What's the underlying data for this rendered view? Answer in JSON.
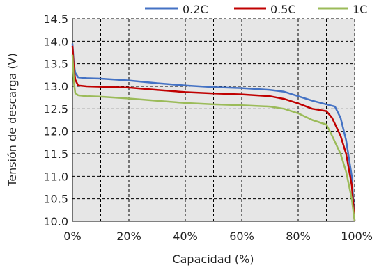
{
  "chart_data": {
    "type": "line",
    "title": "",
    "xlabel": "Capacidad (%)",
    "ylabel": "Tensión de descarga (V)",
    "xlim": [
      0,
      100
    ],
    "ylim": [
      10.0,
      14.5
    ],
    "x_ticks": [
      "0%",
      "20%",
      "40%",
      "60%",
      "80%",
      "100%"
    ],
    "y_ticks": [
      "10.0",
      "10.5",
      "11.0",
      "11.5",
      "12.0",
      "12.5",
      "13.0",
      "13.5",
      "14.0",
      "14.5"
    ],
    "grid": true,
    "plot_background": "#e6e6e6",
    "legend_position": "top",
    "series": [
      {
        "name": "0.2C",
        "color": "#4472c4",
        "points": [
          [
            0,
            13.95
          ],
          [
            0.5,
            13.5
          ],
          [
            1,
            13.3
          ],
          [
            2,
            13.2
          ],
          [
            5,
            13.18
          ],
          [
            10,
            13.17
          ],
          [
            20,
            13.13
          ],
          [
            30,
            13.07
          ],
          [
            40,
            13.02
          ],
          [
            50,
            12.98
          ],
          [
            60,
            12.96
          ],
          [
            70,
            12.92
          ],
          [
            75,
            12.88
          ],
          [
            80,
            12.78
          ],
          [
            85,
            12.68
          ],
          [
            90,
            12.6
          ],
          [
            93,
            12.55
          ],
          [
            95,
            12.3
          ],
          [
            97,
            11.8
          ],
          [
            99,
            11.0
          ],
          [
            100,
            10.0
          ]
        ]
      },
      {
        "name": "0.5C",
        "color": "#c00000",
        "points": [
          [
            0,
            13.9
          ],
          [
            0.5,
            13.4
          ],
          [
            1,
            13.15
          ],
          [
            2,
            13.02
          ],
          [
            5,
            13.0
          ],
          [
            10,
            12.99
          ],
          [
            20,
            12.97
          ],
          [
            30,
            12.92
          ],
          [
            40,
            12.87
          ],
          [
            50,
            12.84
          ],
          [
            60,
            12.82
          ],
          [
            70,
            12.78
          ],
          [
            75,
            12.72
          ],
          [
            80,
            12.62
          ],
          [
            85,
            12.5
          ],
          [
            90,
            12.45
          ],
          [
            92,
            12.3
          ],
          [
            95,
            11.9
          ],
          [
            97,
            11.5
          ],
          [
            99,
            10.8
          ],
          [
            100,
            10.0
          ]
        ]
      },
      {
        "name": "1C",
        "color": "#9bbb59",
        "points": [
          [
            0,
            13.7
          ],
          [
            0.5,
            13.1
          ],
          [
            1,
            12.85
          ],
          [
            2,
            12.8
          ],
          [
            5,
            12.78
          ],
          [
            10,
            12.77
          ],
          [
            20,
            12.73
          ],
          [
            30,
            12.68
          ],
          [
            40,
            12.63
          ],
          [
            50,
            12.6
          ],
          [
            60,
            12.58
          ],
          [
            70,
            12.55
          ],
          [
            75,
            12.5
          ],
          [
            80,
            12.4
          ],
          [
            85,
            12.25
          ],
          [
            90,
            12.15
          ],
          [
            92,
            11.9
          ],
          [
            95,
            11.5
          ],
          [
            97,
            11.1
          ],
          [
            99,
            10.5
          ],
          [
            100,
            10.0
          ]
        ]
      }
    ]
  }
}
